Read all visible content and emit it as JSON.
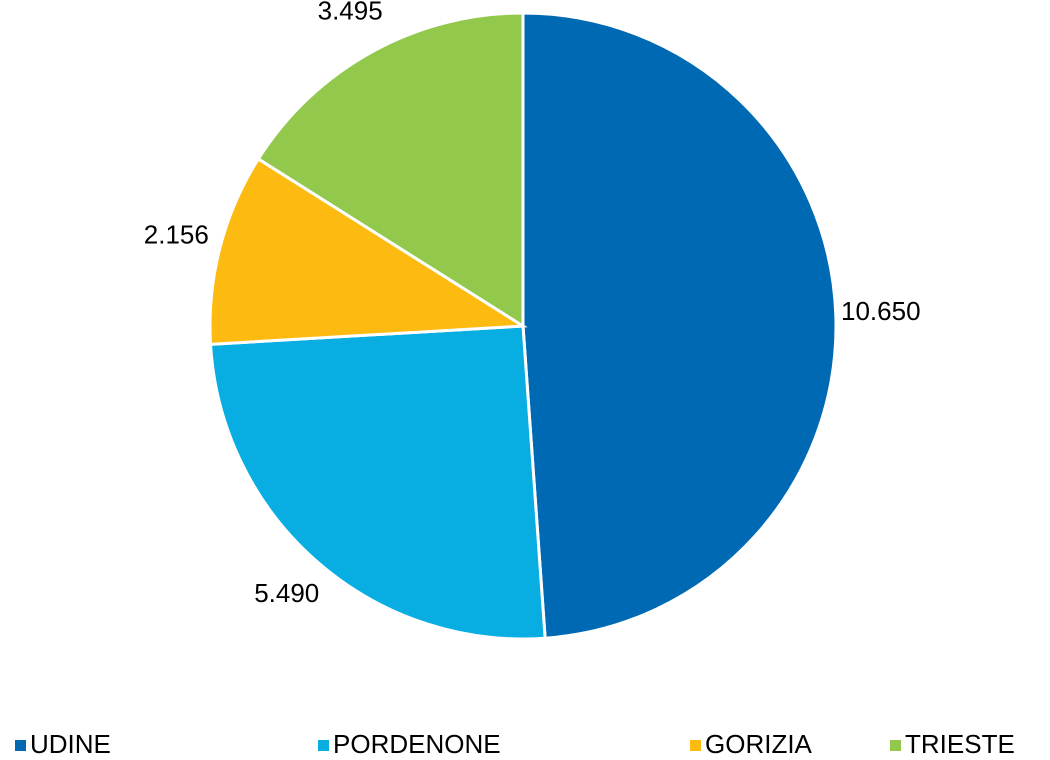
{
  "chart_data": {
    "type": "pie",
    "categories": [
      "UDINE",
      "PORDENONE",
      "GORIZIA",
      "TRIESTE"
    ],
    "values": [
      10650,
      5490,
      2156,
      3495
    ],
    "value_labels": [
      "10.650",
      "5.490",
      "2.156",
      "3.495"
    ],
    "colors": [
      "#0069b4",
      "#08ade2",
      "#fdbb12",
      "#92c84b"
    ],
    "legend": "bottom"
  }
}
